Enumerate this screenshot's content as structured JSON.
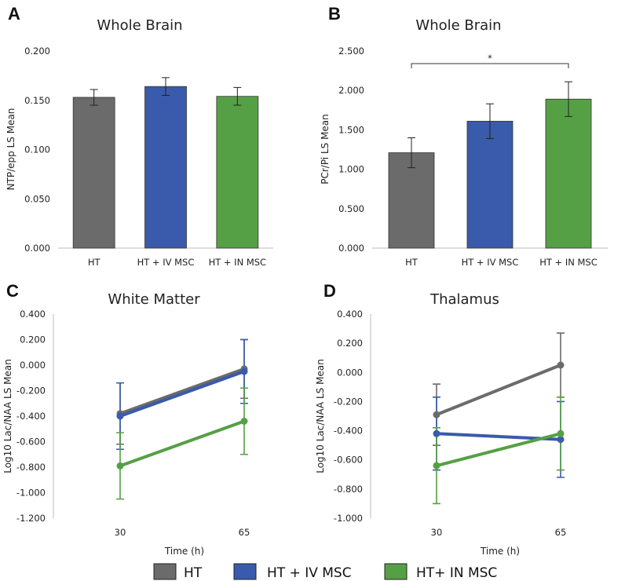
{
  "colors": {
    "HT": "#6b6b6b",
    "IV": "#3a5aab",
    "IN": "#55a044"
  },
  "legend": {
    "items": [
      {
        "label": "HT",
        "color": "#6b6b6b"
      },
      {
        "label": "HT + IV MSC",
        "color": "#3a5aab"
      },
      {
        "label": "HT+ IN MSC",
        "color": "#55a044"
      }
    ]
  },
  "chart_data": [
    {
      "panel": "A",
      "type": "bar",
      "title": "Whole Brain",
      "ylabel": "NTP/epp LS Mean",
      "xlabel": "",
      "ylim": [
        0,
        0.2
      ],
      "yticks": [
        "0.000",
        "0.050",
        "0.100",
        "0.150",
        "0.200"
      ],
      "categories": [
        "HT",
        "HT + IV MSC",
        "HT + IN MSC"
      ],
      "values": [
        0.153,
        0.164,
        0.154
      ],
      "errors": [
        0.008,
        0.009,
        0.009
      ]
    },
    {
      "panel": "B",
      "type": "bar",
      "title": "Whole Brain",
      "ylabel": "PCr/Pi LS Mean",
      "xlabel": "",
      "ylim": [
        0,
        2.5
      ],
      "yticks": [
        "0.000",
        "0.500",
        "1.000",
        "1.500",
        "2.000",
        "2.500"
      ],
      "categories": [
        "HT",
        "HT + IV MSC",
        "HT + IN MSC"
      ],
      "values": [
        1.21,
        1.61,
        1.89
      ],
      "errors": [
        0.19,
        0.22,
        0.22
      ],
      "annotation": {
        "text": "*",
        "from": 0,
        "to": 2
      }
    },
    {
      "panel": "C",
      "type": "line",
      "title": "White Matter",
      "ylabel": "Log10 Lac/NAA LS Mean",
      "xlabel": "Time (h)",
      "x": [
        "30",
        "65"
      ],
      "ylim": [
        -1.2,
        0.4
      ],
      "yticks": [
        "-1.200",
        "-1.000",
        "-0.800",
        "-0.600",
        "-0.400",
        "-0.200",
        "0.000",
        "0.200",
        "0.400"
      ],
      "series": [
        {
          "name": "HT",
          "values": [
            -0.38,
            -0.03
          ],
          "errors": [
            0.24,
            0.23
          ]
        },
        {
          "name": "HT + IV MSC",
          "values": [
            -0.4,
            -0.05
          ],
          "errors": [
            0.26,
            0.25
          ]
        },
        {
          "name": "HT+ IN MSC",
          "values": [
            -0.79,
            -0.44
          ],
          "errors": [
            0.26,
            0.26
          ]
        }
      ]
    },
    {
      "panel": "D",
      "type": "line",
      "title": "Thalamus",
      "ylabel": "Log10 Lac/NAA LS Mean",
      "xlabel": "Time (h)",
      "x": [
        "30",
        "65"
      ],
      "ylim": [
        -1.0,
        0.4
      ],
      "yticks": [
        "-1.000",
        "-0.800",
        "-0.600",
        "-0.400",
        "-0.200",
        "0.000",
        "0.200",
        "0.400"
      ],
      "series": [
        {
          "name": "HT",
          "values": [
            -0.29,
            0.05
          ],
          "errors": [
            0.21,
            0.22
          ]
        },
        {
          "name": "HT + IV MSC",
          "values": [
            -0.42,
            -0.46
          ],
          "errors": [
            0.25,
            0.26
          ]
        },
        {
          "name": "HT+ IN MSC",
          "values": [
            -0.64,
            -0.42
          ],
          "errors": [
            0.26,
            0.25
          ]
        }
      ]
    }
  ]
}
